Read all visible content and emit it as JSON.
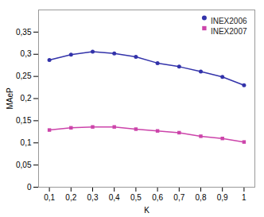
{
  "chart_data": {
    "type": "line",
    "x": [
      0.1,
      0.2,
      0.3,
      0.4,
      0.5,
      0.6,
      0.7,
      0.8,
      0.9,
      1.0
    ],
    "series": [
      {
        "name": "INEX2006",
        "color": "#3333AA",
        "marker": "circle",
        "values": [
          0.287,
          0.299,
          0.306,
          0.302,
          0.294,
          0.28,
          0.272,
          0.261,
          0.249,
          0.23
        ]
      },
      {
        "name": "INEX2007",
        "color": "#CC44AA",
        "marker": "square",
        "values": [
          0.129,
          0.134,
          0.136,
          0.136,
          0.131,
          0.127,
          0.123,
          0.115,
          0.11,
          0.102
        ]
      }
    ],
    "xlabel": "K",
    "ylabel": "MAeP",
    "xlim": [
      0.05,
      1.05
    ],
    "xticks": [
      {
        "value": 0.1,
        "label": "0,1"
      },
      {
        "value": 0.2,
        "label": "0,2"
      },
      {
        "value": 0.3,
        "label": "0,3"
      },
      {
        "value": 0.4,
        "label": "0,4"
      },
      {
        "value": 0.5,
        "label": "0,5"
      },
      {
        "value": 0.6,
        "label": "0,6"
      },
      {
        "value": 0.7,
        "label": "0,7"
      },
      {
        "value": 0.8,
        "label": "0,8"
      },
      {
        "value": 0.9,
        "label": "0,9"
      },
      1
    ],
    "ylim": [
      0,
      0.4
    ],
    "yticks": [
      0,
      {
        "value": 0.05,
        "label": "0,05"
      },
      {
        "value": 0.1,
        "label": "0,1"
      },
      {
        "value": 0.15,
        "label": "0,15"
      },
      {
        "value": 0.2,
        "label": "0,2"
      },
      {
        "value": 0.25,
        "label": "0,25"
      },
      {
        "value": 0.3,
        "label": "0,3"
      },
      {
        "value": 0.35,
        "label": "0,35"
      }
    ],
    "legend": "upper right",
    "grid": false
  }
}
